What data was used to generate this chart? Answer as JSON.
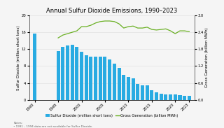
{
  "title": "Annual Sulfur Dioxide Emissions, 1990–2023",
  "years": [
    1990,
    1991,
    1992,
    1993,
    1994,
    1995,
    1996,
    1997,
    1998,
    1999,
    2000,
    2001,
    2002,
    2003,
    2004,
    2005,
    2006,
    2007,
    2008,
    2009,
    2010,
    2011,
    2012,
    2013,
    2014,
    2015,
    2016,
    2017,
    2018,
    2019,
    2020,
    2021,
    2022,
    2023
  ],
  "so2": [
    15.7,
    null,
    null,
    null,
    null,
    11.6,
    12.5,
    12.9,
    13.0,
    12.5,
    11.4,
    10.6,
    10.2,
    10.2,
    10.2,
    10.2,
    9.5,
    8.5,
    7.6,
    6.0,
    5.5,
    5.1,
    3.8,
    3.5,
    3.5,
    2.2,
    1.7,
    1.5,
    1.3,
    1.3,
    1.2,
    1.1,
    1.0,
    0.9
  ],
  "gen": [
    null,
    null,
    null,
    null,
    null,
    2.2,
    2.3,
    2.35,
    2.4,
    2.45,
    2.6,
    2.6,
    2.65,
    2.73,
    2.78,
    2.8,
    2.8,
    2.78,
    2.7,
    2.55,
    2.6,
    2.62,
    2.55,
    2.55,
    2.58,
    2.5,
    2.48,
    2.5,
    2.52,
    2.45,
    2.35,
    2.45,
    2.45,
    2.42
  ],
  "so2_color": "#29abe2",
  "gen_color": "#6ab023",
  "background_color": "#f5f5f5",
  "ylabel_left": "Sulfur Dioxide (million short tons)",
  "ylabel_right": "Gross Generation (billion MWh)",
  "ylim_left": [
    0,
    20
  ],
  "ylim_right": [
    0,
    3.0
  ],
  "yticks_left": [
    0,
    4,
    8,
    12,
    16,
    20
  ],
  "yticks_right": [
    0,
    0.6,
    1.2,
    1.8,
    2.4,
    3.0
  ],
  "xticks": [
    1990,
    1995,
    2000,
    2005,
    2010,
    2015,
    2020,
    2023
  ],
  "legend_labels": [
    "Sulfur Dioxide (million short tons)",
    "Gross Generation (billion MWh)"
  ],
  "footnote": "Notes:\n• 1991 – 1994 data are not available for Sulfur Dioxide.",
  "title_fontsize": 6.0,
  "axis_fontsize": 4.0,
  "tick_fontsize": 3.8,
  "legend_fontsize": 3.8,
  "footnote_fontsize": 3.0
}
